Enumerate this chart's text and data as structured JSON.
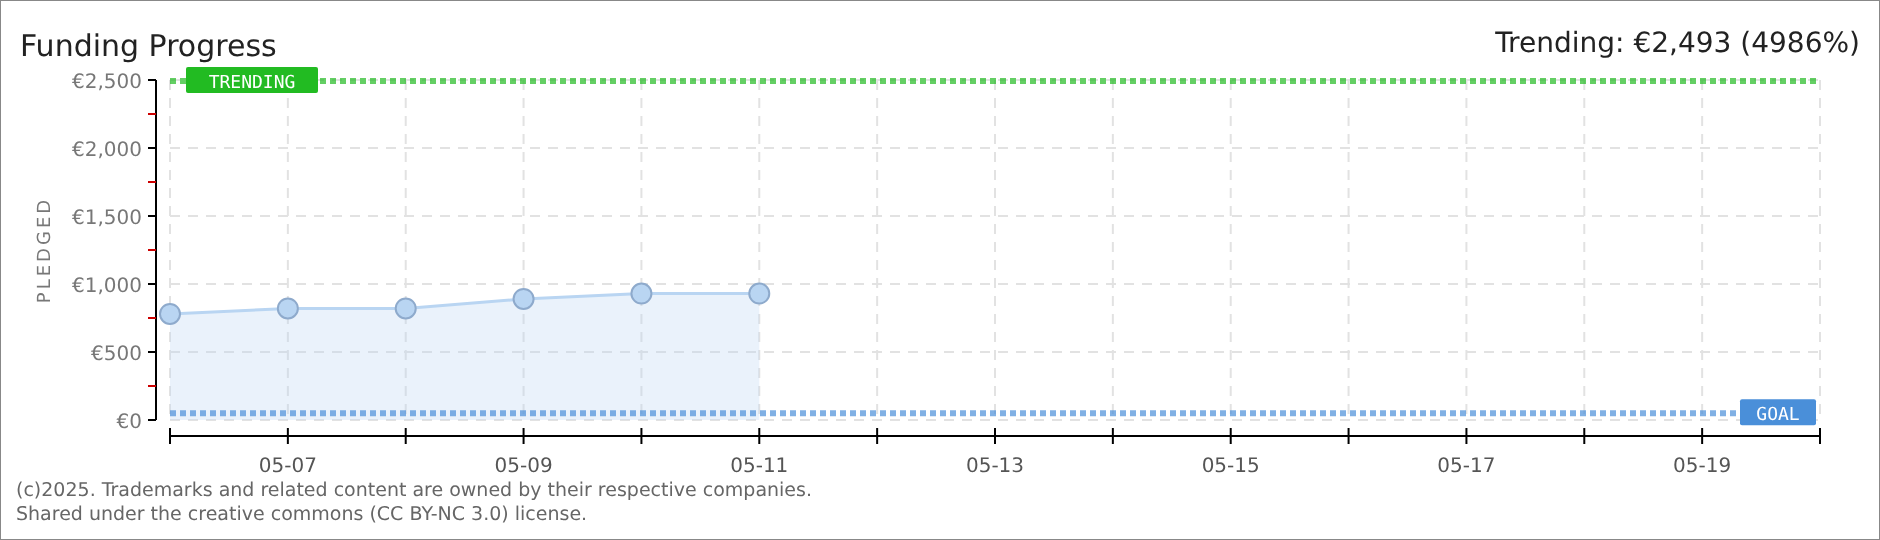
{
  "chart_data": {
    "type": "area",
    "title": "Funding Progress",
    "subtitle": "Trending: €2,493 (4986%)",
    "ylabel": "PLEDGED",
    "x": [
      "2025-05-06",
      "2025-05-07",
      "2025-05-08",
      "2025-05-09",
      "2025-05-10",
      "2025-05-11"
    ],
    "series": [
      {
        "color": "#b9d5f2",
        "values": [
          780,
          820,
          820,
          890,
          930,
          930
        ]
      }
    ],
    "xlim": [
      "2025-05-06",
      "2025-05-20"
    ],
    "xticks": [
      {
        "value": "2025-05-06",
        "label": null
      },
      {
        "value": "2025-05-07",
        "label": "05-07"
      },
      {
        "value": "2025-05-08",
        "label": null
      },
      {
        "value": "2025-05-09",
        "label": "05-09"
      },
      {
        "value": "2025-05-10",
        "label": null
      },
      {
        "value": "2025-05-11",
        "label": "05-11"
      },
      {
        "value": "2025-05-12",
        "label": null
      },
      {
        "value": "2025-05-13",
        "label": "05-13"
      },
      {
        "value": "2025-05-14",
        "label": null
      },
      {
        "value": "2025-05-15",
        "label": "05-15"
      },
      {
        "value": "2025-05-16",
        "label": null
      },
      {
        "value": "2025-05-17",
        "label": "05-17"
      },
      {
        "value": "2025-05-18",
        "label": null
      },
      {
        "value": "2025-05-19",
        "label": "05-19"
      },
      {
        "value": "2025-05-20",
        "label": null
      }
    ],
    "ylim": [
      0,
      2500
    ],
    "yticks": [
      {
        "value": 0,
        "label": "€0"
      },
      {
        "value": 250,
        "label": null
      },
      {
        "value": 500,
        "label": "€500"
      },
      {
        "value": 750,
        "label": null
      },
      {
        "value": 1000,
        "label": "€1,000"
      },
      {
        "value": 1250,
        "label": null
      },
      {
        "value": 1500,
        "label": "€1,500"
      },
      {
        "value": 1750,
        "label": null
      },
      {
        "value": 2000,
        "label": "€2,000"
      },
      {
        "value": 2250,
        "label": null
      },
      {
        "value": 2500,
        "label": "€2,500"
      }
    ],
    "grid": true,
    "marker": "circle",
    "ref_lines": [
      {
        "axis": "y",
        "value": 2493,
        "label": "TRENDING",
        "color": "#22bb22",
        "line_style": "dotted"
      },
      {
        "axis": "y",
        "value": 50,
        "label": "GOAL",
        "color": "#4a8fd9",
        "line_style": "dotted"
      }
    ],
    "annotations": [
      "(c)2025. Trademarks and related content are owned by their respective companies.",
      "Shared under the creative commons (CC BY-NC 3.0) license."
    ]
  }
}
